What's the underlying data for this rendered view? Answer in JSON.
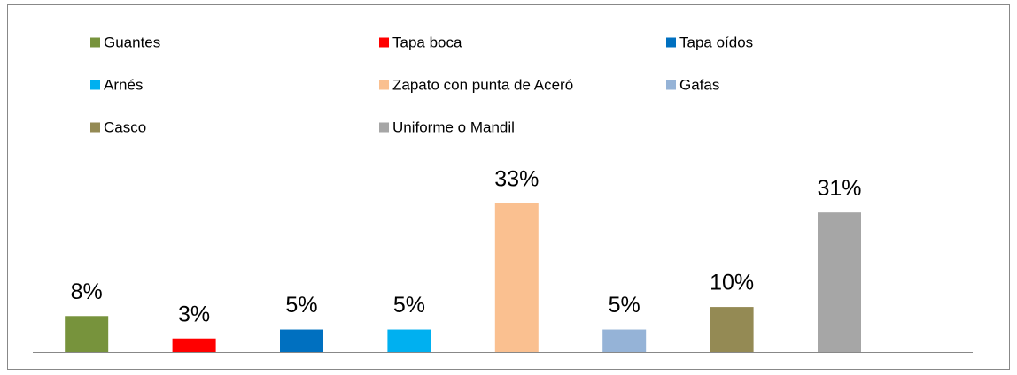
{
  "chart_data": {
    "type": "bar",
    "categories": [
      "Guantes",
      "Tapa boca",
      "Tapa oídos",
      "Arnés",
      "Zapato con punta de Aceró",
      "Gafas",
      "Casco",
      "Uniforme o Mandil"
    ],
    "values": [
      8,
      3,
      5,
      5,
      33,
      5,
      10,
      31
    ],
    "value_labels": [
      "8%",
      "3%",
      "5%",
      "5%",
      "33%",
      "5%",
      "10%",
      "31%"
    ],
    "colors": [
      "#77933c",
      "#ff0000",
      "#0070c0",
      "#00b0f0",
      "#fac090",
      "#95b3d7",
      "#948a54",
      "#a6a6a6"
    ],
    "legend": "top"
  }
}
